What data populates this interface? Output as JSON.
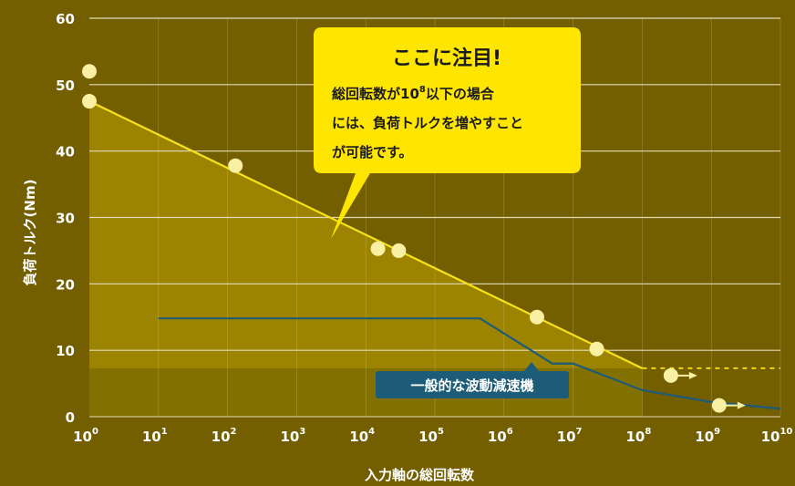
{
  "chart_data": {
    "type": "line",
    "xscale": "log10",
    "xlim": [
      1,
      10000000000
    ],
    "ylim": [
      0,
      60
    ],
    "x_ticks": [
      {
        "base": "10",
        "exp": "0"
      },
      {
        "base": "10",
        "exp": "1"
      },
      {
        "base": "10",
        "exp": "2"
      },
      {
        "base": "10",
        "exp": "3"
      },
      {
        "base": "10",
        "exp": "4"
      },
      {
        "base": "10",
        "exp": "5"
      },
      {
        "base": "10",
        "exp": "6"
      },
      {
        "base": "10",
        "exp": "7"
      },
      {
        "base": "10",
        "exp": "8"
      },
      {
        "base": "10",
        "exp": "9"
      },
      {
        "base": "10",
        "exp": "10"
      }
    ],
    "y_ticks": [
      "0",
      "10",
      "20",
      "30",
      "40",
      "50",
      "60"
    ],
    "xlabel": "入力軸の総回転数",
    "ylabel": "負荷トルク(Nm)",
    "grid": "horizontal",
    "series": [
      {
        "role": "rated-line",
        "color": "#f5e21a",
        "x": [
          1,
          100000000,
          10000000000
        ],
        "y": [
          47.5,
          7.3,
          7.3
        ],
        "dashed_after_x": 100000000
      },
      {
        "name": "一般的な波動減速機",
        "color": "#1d5c78",
        "x": [
          10,
          450000,
          5000000,
          10000000,
          100000000,
          1000000000,
          10000000000
        ],
        "y": [
          14.8,
          14.8,
          8.0,
          8.0,
          4.0,
          2.2,
          1.2
        ]
      }
    ],
    "points": [
      {
        "x": 1,
        "y": 52
      },
      {
        "x": 1,
        "y": 47.5
      },
      {
        "x": 130,
        "y": 37.8
      },
      {
        "x": 15000,
        "y": 25.3
      },
      {
        "x": 30000,
        "y": 25
      },
      {
        "x": 3000000,
        "y": 15
      },
      {
        "x": 22000000,
        "y": 10.2
      },
      {
        "x": 260000000,
        "y": 6.2,
        "arrow": true
      },
      {
        "x": 1300000000,
        "y": 1.7,
        "arrow": true
      }
    ],
    "shaded_floor_y": 7.3,
    "colors": {
      "background": "#735e00",
      "area": "#9c8300",
      "floor_band": "#827100",
      "grid": "#e3dbb8",
      "point_fill": "#faf0a4",
      "callout_fill": "#ffe600",
      "tag_fill": "#1d5c78"
    }
  },
  "callout": {
    "title": "ここに注目!",
    "lines": [
      {
        "pre": "総回転数が10",
        "sup": "8",
        "post": "以下の場合"
      },
      {
        "pre": "には、負荷トルクを増やすこと",
        "sup": "",
        "post": ""
      },
      {
        "pre": "が可能です。",
        "sup": "",
        "post": ""
      }
    ]
  }
}
